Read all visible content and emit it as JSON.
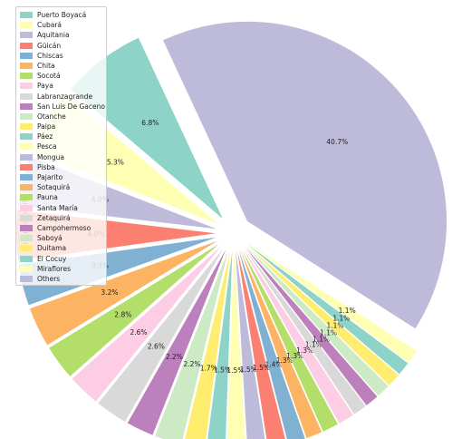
{
  "chart_data": {
    "type": "pie",
    "ylabel": "municipality",
    "labels": [
      "Puerto Boyacá",
      "Cubará",
      "Aquitania",
      "Güicán",
      "Chiscas",
      "Chita",
      "Socotá",
      "Paya",
      "Labranzagrande",
      "San Luis De Gaceno",
      "Otanche",
      "Paipa",
      "Páez",
      "Pesca",
      "Mongua",
      "Pisba",
      "Pajarito",
      "Sotaquirá",
      "Pauna",
      "Santa María",
      "Zetaquirá",
      "Campohermoso",
      "Saboyá",
      "Duitama",
      "El Cocuy",
      "Miraflores",
      "Others"
    ],
    "values": [
      6.8,
      5.3,
      4.0,
      4.0,
      3.3,
      3.2,
      2.8,
      2.6,
      2.6,
      2.2,
      2.2,
      1.7,
      1.5,
      1.5,
      1.5,
      1.5,
      1.4,
      1.3,
      1.3,
      1.3,
      1.1,
      1.1,
      1.1,
      1.1,
      1.1,
      1.1,
      40.7
    ],
    "value_labels": [
      "6.8%",
      "5.3%",
      "4.0%",
      "4.0%",
      "3.3%",
      "3.2%",
      "2.8%",
      "2.6%",
      "2.6%",
      "2.2%",
      "2.2%",
      "1.7%",
      "1.5%",
      "1.5%",
      "1.5%",
      "1.5%",
      "1.4%",
      "1.3%",
      "1.3%",
      "1.3%",
      "1.1%",
      "1.1%",
      "1.1%",
      "1.1%",
      "1.1%",
      "1.1%",
      "40.7%"
    ],
    "colors": [
      "#8dd3c7",
      "#ffffb3",
      "#bebada",
      "#fb8072",
      "#80b1d3",
      "#fdb462",
      "#b3de69",
      "#fccde5",
      "#d9d9d9",
      "#bc80bd",
      "#ccebc5",
      "#ffed6f",
      "#8dd3c7",
      "#ffffb3",
      "#bebada",
      "#fb8072",
      "#80b1d3",
      "#fdb462",
      "#b3de69",
      "#fccde5",
      "#d9d9d9",
      "#bc80bd",
      "#ccebc5",
      "#ffed6f",
      "#8dd3c7",
      "#ffffb3",
      "#bebada"
    ],
    "legend_position": "upper-left",
    "exploded": true
  }
}
